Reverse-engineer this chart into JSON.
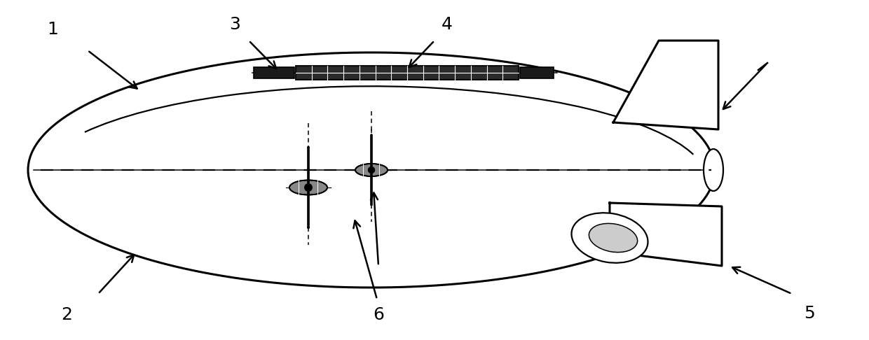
{
  "bg_color": "#ffffff",
  "line_color": "#000000",
  "fig_width": 12.4,
  "fig_height": 4.86,
  "dpi": 100,
  "label_fontsize": 18
}
